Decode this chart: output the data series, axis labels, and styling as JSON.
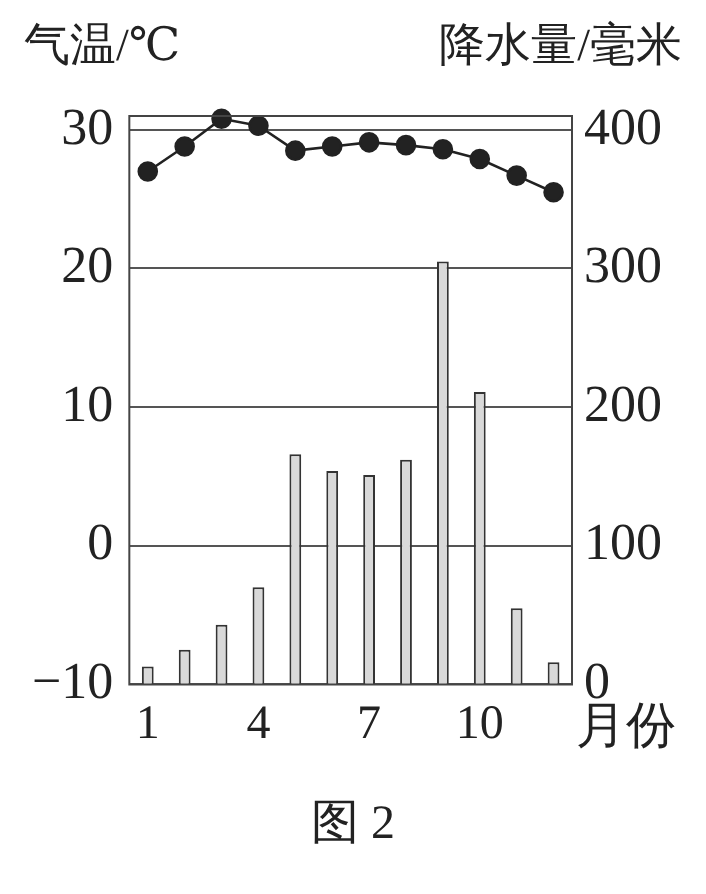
{
  "chart_data": {
    "type": "bar",
    "categories": [
      "1",
      null,
      null,
      "4",
      null,
      null,
      "7",
      null,
      null,
      "10",
      null,
      null
    ],
    "xlabel": "月份",
    "ylabel": "气温/℃",
    "y2label": "降水量/毫米",
    "series": [
      {
        "type": "line",
        "color": "#222222",
        "values": [
          27.0,
          28.8,
          30.8,
          30.3,
          28.5,
          28.8,
          29.1,
          28.9,
          28.6,
          27.9,
          26.7,
          25.5
        ]
      },
      {
        "type": "bar",
        "axis": "y2",
        "color": "#d9d9d9",
        "values": [
          13,
          25,
          43,
          70,
          166,
          154,
          151,
          162,
          305,
          211,
          55,
          16
        ]
      }
    ],
    "ylim": [
      -10,
      31
    ],
    "yticks": [
      -10,
      0,
      10,
      20,
      30
    ],
    "y2lim": [
      0,
      410
    ],
    "y2ticks": [
      0,
      100,
      200,
      300,
      400
    ],
    "grid": "y",
    "legend": false,
    "marker": "circle",
    "line_style": "solid",
    "annotations": [
      "图 2"
    ]
  }
}
